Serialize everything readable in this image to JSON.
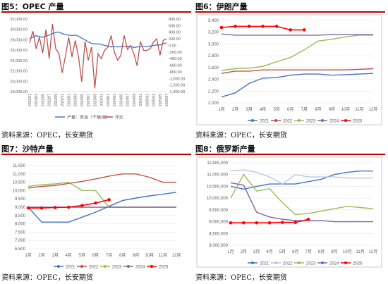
{
  "panels": [
    {
      "title": "图5：OPEC 产量",
      "source": "资料来源：OPEC，长安期货"
    },
    {
      "title": "图6：伊朗产量",
      "source": "资料来源：OPEC，长安期货"
    },
    {
      "title": "图7：沙特产量",
      "source": "资料来源：OPEC，长安期货"
    },
    {
      "title": "图8：俄罗斯产量",
      "source": "资料来源：OPEC，长安期货"
    }
  ],
  "chart_data": [
    {
      "type": "line",
      "title": "",
      "dates": [
        "2022/01",
        "2022/02",
        "2022/03",
        "2022/04",
        "2022/05",
        "2022/06",
        "2022/07",
        "2022/08",
        "2022/09",
        "2022/10",
        "2022/11",
        "2022/12",
        "2023/01",
        "2023/02",
        "2023/03",
        "2023/04",
        "2023/05",
        "2023/06",
        "2023/07",
        "2023/08",
        "2023/09",
        "2023/10",
        "2023/11",
        "2023/12",
        "2024/01",
        "2024/02",
        "2024/03",
        "2024/04",
        "2024/05",
        "2024/06",
        "2024/07",
        "2024/08",
        "2024/09",
        "2024/10",
        "2024/11",
        "2024/12",
        "2025/01",
        "2025/02",
        "2025/03",
        "2025/04",
        "2025/05",
        "2025/06",
        "2025/07"
      ],
      "x_tick_labels": [
        "2022/01",
        "2022/03",
        "2022/05",
        "2022/07",
        "2022/09",
        "2022/11",
        "2023/01",
        "2023/03",
        "2023/05",
        "2023/07",
        "2023/09",
        "2023/11",
        "2024/01",
        "2024/03",
        "2024/05",
        "2024/07",
        "2024/09",
        "2024/11",
        "2025/01",
        "2025/03",
        "2025/05",
        "2025/07"
      ],
      "y_left": {
        "min": 18000,
        "max": 32000,
        "ticks": [
          "18,000.00",
          "20,000.00",
          "22,000.00",
          "24,000.00",
          "26,000.00",
          "28,000.00",
          "30,000.00",
          "32,000.00"
        ]
      },
      "y_right": {
        "min": -1400,
        "max": 800,
        "ticks": [
          "800.00",
          "600.00",
          "400.00",
          "200.00",
          "0.00",
          "-200.00",
          "-400.00",
          "-600.00",
          "-800.00",
          "-1,000.00",
          "-1,200.00",
          "-1,400.00"
        ]
      },
      "series": [
        {
          "name": "产量：原油（千桶/日）",
          "axis": "left",
          "color": "#4472c4",
          "values": [
            28200,
            28500,
            28800,
            28600,
            28500,
            28700,
            28900,
            29200,
            29400,
            29500,
            29200,
            29000,
            28900,
            28800,
            28900,
            28700,
            28300,
            28000,
            27600,
            27300,
            27200,
            27200,
            27100,
            26900,
            26800,
            26600,
            26700,
            26600,
            26700,
            26700,
            26700,
            26800,
            26500,
            26600,
            26700,
            26700,
            26700,
            26800,
            26900,
            27000,
            27000,
            27200,
            27400
          ]
        },
        {
          "name": "环比",
          "axis": "right",
          "color": "#c0504d",
          "values": [
            80,
            430,
            -100,
            250,
            -230,
            480,
            -400,
            650,
            -100,
            -250,
            -830,
            -320,
            250,
            -350,
            150,
            -350,
            -1100,
            120,
            -450,
            -50,
            -1300,
            -250,
            -400,
            -150,
            -50,
            300,
            -200,
            -450,
            -300,
            300,
            -120,
            0,
            -250,
            -620,
            120,
            -150,
            -150,
            -100,
            100,
            200,
            -300,
            150,
            200
          ]
        }
      ]
    },
    {
      "type": "line",
      "title": "",
      "categories": [
        "1月",
        "2月",
        "3月",
        "4月",
        "5月",
        "6月",
        "7月",
        "8月",
        "9月",
        "10月",
        "11月",
        "12月"
      ],
      "y": {
        "min": 2000,
        "max": 3400,
        "ticks": [
          "2,000",
          "2,200",
          "2,400",
          "2,600",
          "2,800",
          "3,000",
          "3,200",
          "3,400"
        ]
      },
      "series": [
        {
          "name": "2021",
          "color": "#4472c4",
          "values": [
            2100,
            2170,
            2330,
            2420,
            2430,
            2470,
            2490,
            2490,
            2470,
            2480,
            2490,
            2500
          ]
        },
        {
          "name": "2022",
          "color": "#c0504d",
          "values": [
            2500,
            2540,
            2540,
            2560,
            2560,
            2560,
            2560,
            2560,
            2560,
            2560,
            2570,
            2580
          ]
        },
        {
          "name": "2023",
          "color": "#9bbb59",
          "values": [
            2550,
            2580,
            2590,
            2620,
            2700,
            2770,
            2900,
            3050,
            3080,
            3120,
            3150,
            3150
          ]
        },
        {
          "name": "2024",
          "color": "#8064a2",
          "values": [
            3170,
            3150,
            3150,
            3150,
            3150,
            3150,
            3150,
            3150,
            3160,
            3160,
            3160,
            3160
          ]
        },
        {
          "name": "2025",
          "color": "#ff0000",
          "values": [
            3280,
            3300,
            3300,
            3300,
            3300,
            3240,
            3240,
            null,
            null,
            null,
            null,
            null
          ]
        }
      ]
    },
    {
      "type": "line",
      "title": "",
      "categories": [
        "1月",
        "2月",
        "3月",
        "4月",
        "5月",
        "6月",
        "7月",
        "8月",
        "9月",
        "10月",
        "11月",
        "12月"
      ],
      "y": {
        "min": 6500,
        "max": 11500,
        "ticks": [
          "6,500",
          "7,000",
          "7,500",
          "8,000",
          "8,500",
          "9,000",
          "9,500",
          "10,000",
          "10,500",
          "11,000",
          "11,500"
        ]
      },
      "series": [
        {
          "name": "2021",
          "color": "#4472c4",
          "values": [
            9000,
            8100,
            8100,
            8100,
            8400,
            8700,
            9050,
            9400,
            9550,
            9680,
            9780,
            9900
          ]
        },
        {
          "name": "2022",
          "color": "#c0504d",
          "values": [
            10150,
            10250,
            10300,
            10430,
            10550,
            10700,
            10870,
            11000,
            11000,
            10800,
            10500,
            10500
          ]
        },
        {
          "name": "2023",
          "color": "#9bbb59",
          "values": [
            10250,
            10350,
            10400,
            10500,
            10000,
            10000,
            9000,
            9000,
            9000,
            9000,
            9000,
            9000
          ]
        },
        {
          "name": "2024",
          "color": "#8064a2",
          "values": [
            9000,
            9000,
            9000,
            9000,
            9000,
            9000,
            9000,
            9000,
            9000,
            9000,
            9000,
            9000
          ]
        },
        {
          "name": "2025",
          "color": "#ff0000",
          "values": [
            8950,
            8950,
            8980,
            9000,
            9100,
            9250,
            9450,
            null,
            null,
            null,
            null,
            null
          ]
        }
      ]
    },
    {
      "type": "line",
      "title": "",
      "categories": [
        "1月",
        "2月",
        "3月",
        "4月",
        "5月",
        "6月",
        "7月",
        "8月",
        "9月",
        "10月",
        "11月",
        "12月"
      ],
      "y": {
        "min": 8000000,
        "max": 11500000,
        "ticks": [
          "8,000,000",
          "8,500,000",
          "9,000,000",
          "9,500,000",
          "10,000,000",
          "10,500,000",
          "11,000,000",
          "11,500,000"
        ]
      },
      "series": [
        {
          "name": "2021",
          "color": "#4472c4",
          "values": [
            10500000,
            10380000,
            10500000,
            10600000,
            10600000,
            10600000,
            10700000,
            10800000,
            11000000,
            11100000,
            11150000,
            11150000
          ]
        },
        {
          "name": "2022",
          "color": "#b4c7e7",
          "values": [
            11150000,
            11200000,
            11100000,
            10900000,
            10600000,
            11000000,
            10900000,
            10900000,
            10900000,
            10850000,
            10850000,
            10850000
          ]
        },
        {
          "name": "2023",
          "color": "#9bbb59",
          "values": [
            10000000,
            11000000,
            10300000,
            10400000,
            9800000,
            9300000,
            9350000,
            9450000,
            9550000,
            9650000,
            9600000,
            9550000
          ]
        },
        {
          "name": "2024",
          "color": "#8064a2",
          "values": [
            10650000,
            10550000,
            9400000,
            9200000,
            9100000,
            9050000,
            9050000,
            9050000,
            9000000,
            9000000,
            9000000,
            9000000
          ]
        },
        {
          "name": "2025",
          "color": "#ff0000",
          "values": [
            8950000,
            8950000,
            8950000,
            8950000,
            8970000,
            8970000,
            9100000,
            null,
            null,
            null,
            null,
            null
          ]
        }
      ]
    }
  ]
}
